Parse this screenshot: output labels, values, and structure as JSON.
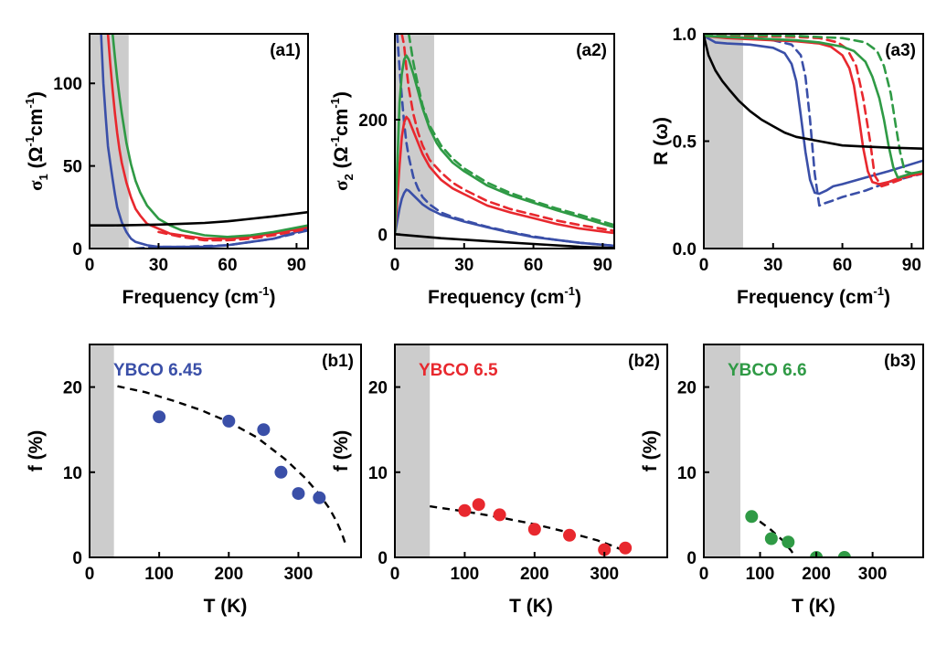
{
  "colors": {
    "blue": "#3a4fa8",
    "red": "#e8282e",
    "green": "#2f9a45",
    "black": "#000000",
    "shade": "#cccccc"
  },
  "chart_data": [
    {
      "id": "a1",
      "type": "line",
      "label": "(a1)",
      "xlabel": {
        "text": "Frequency (cm",
        "sup": "-1",
        "tail": ")"
      },
      "ylabel": {
        "sym": "σ",
        "sub": "1",
        "text": " (Ω",
        "sup1": "-1",
        "mid": "cm",
        "sup2": "-1",
        "tail": ")"
      },
      "xlim": [
        0,
        95
      ],
      "ylim": [
        0,
        130
      ],
      "xticks": [
        0,
        30,
        60,
        90
      ],
      "yticks": [
        0,
        50,
        100
      ],
      "shade": [
        0,
        17
      ],
      "series": [
        {
          "color": "blue",
          "dash": false,
          "x": [
            5,
            6,
            7,
            8,
            9,
            10,
            11,
            12,
            14,
            16,
            18,
            20,
            25,
            30,
            40,
            50,
            60,
            70,
            80,
            95
          ],
          "y": [
            130,
            100,
            80,
            62,
            52,
            42,
            33,
            25,
            16,
            10,
            6,
            4,
            2,
            1,
            1,
            1,
            2,
            4,
            6,
            12
          ]
        },
        {
          "color": "blue",
          "dash": true,
          "x": [
            20,
            25,
            30,
            40,
            50,
            60,
            70,
            80,
            95
          ],
          "y": [
            0,
            0.5,
            1,
            1,
            1.5,
            2,
            4,
            6,
            11
          ]
        },
        {
          "color": "red",
          "dash": false,
          "x": [
            8,
            9,
            10,
            11,
            12,
            13,
            14,
            16,
            18,
            20,
            22,
            25,
            30,
            35,
            40,
            50,
            60,
            70,
            80,
            95
          ],
          "y": [
            130,
            112,
            96,
            82,
            70,
            60,
            52,
            40,
            31,
            24,
            20,
            15,
            12,
            9,
            8,
            6,
            6,
            7,
            9,
            13
          ]
        },
        {
          "color": "red",
          "dash": true,
          "x": [
            30,
            40,
            50,
            60,
            70,
            80,
            95
          ],
          "y": [
            10,
            7,
            5,
            5,
            6,
            8,
            12
          ]
        },
        {
          "color": "green",
          "dash": false,
          "x": [
            10,
            11,
            12,
            13,
            14,
            16,
            18,
            20,
            22,
            25,
            30,
            35,
            40,
            50,
            60,
            70,
            80,
            95
          ],
          "y": [
            130,
            116,
            103,
            92,
            82,
            64,
            51,
            41,
            34,
            26,
            18,
            14,
            11,
            8,
            7,
            8,
            10,
            14
          ]
        },
        {
          "color": "black",
          "dash": false,
          "x": [
            0,
            10,
            20,
            30,
            40,
            50,
            60,
            70,
            80,
            95
          ],
          "y": [
            14,
            14,
            14.2,
            14.5,
            15,
            15.5,
            16.5,
            18,
            19.5,
            22
          ]
        }
      ]
    },
    {
      "id": "a2",
      "type": "line",
      "label": "(a2)",
      "xlabel": {
        "text": "Frequency (cm",
        "sup": "-1",
        "tail": ")"
      },
      "ylabel": {
        "sym": "σ",
        "sub": "2",
        "text": " (Ω",
        "sup1": "-1",
        "mid": "cm",
        "sup2": "-1",
        "tail": ")"
      },
      "xlim": [
        0,
        95
      ],
      "ylim": [
        -25,
        350
      ],
      "xticks": [
        0,
        30,
        60,
        90
      ],
      "yticks": [
        0,
        200
      ],
      "shade": [
        0,
        17
      ],
      "series": [
        {
          "color": "blue",
          "dash": false,
          "x": [
            0,
            2,
            3,
            4,
            5,
            6,
            8,
            10,
            12,
            15,
            18,
            20,
            25,
            30,
            40,
            50,
            60,
            70,
            80,
            95
          ],
          "y": [
            0,
            45,
            62,
            72,
            78,
            76,
            68,
            60,
            52,
            44,
            38,
            34,
            28,
            22,
            12,
            3,
            -5,
            -10,
            -15,
            -20
          ]
        },
        {
          "color": "blue",
          "dash": true,
          "x": [
            1,
            2,
            3,
            4,
            5,
            6,
            8,
            10,
            12,
            15,
            20,
            25,
            30,
            40,
            50,
            60,
            70,
            80,
            95
          ],
          "y": [
            350,
            290,
            240,
            195,
            160,
            135,
            100,
            80,
            65,
            52,
            38,
            30,
            24,
            13,
            4,
            -4,
            -10,
            -15,
            -20
          ]
        },
        {
          "color": "red",
          "dash": false,
          "x": [
            0,
            2,
            3,
            4,
            5,
            6,
            8,
            10,
            12,
            15,
            18,
            20,
            25,
            30,
            40,
            50,
            60,
            70,
            80,
            95
          ],
          "y": [
            0,
            120,
            170,
            195,
            205,
            200,
            180,
            160,
            140,
            118,
            104,
            95,
            80,
            70,
            50,
            38,
            28,
            18,
            10,
            2
          ]
        },
        {
          "color": "red",
          "dash": true,
          "x": [
            3,
            4,
            5,
            6,
            8,
            10,
            12,
            15,
            20,
            25,
            30,
            40,
            50,
            60,
            70,
            80,
            95
          ],
          "y": [
            350,
            330,
            290,
            255,
            210,
            178,
            155,
            130,
            108,
            90,
            78,
            58,
            44,
            34,
            24,
            16,
            6
          ]
        },
        {
          "color": "green",
          "dash": false,
          "x": [
            0,
            2,
            3,
            4,
            5,
            6,
            8,
            10,
            12,
            15,
            18,
            20,
            25,
            30,
            40,
            50,
            60,
            70,
            80,
            95
          ],
          "y": [
            0,
            230,
            280,
            305,
            312,
            305,
            280,
            250,
            220,
            185,
            160,
            148,
            125,
            110,
            85,
            68,
            55,
            42,
            30,
            12
          ]
        },
        {
          "color": "green",
          "dash": true,
          "x": [
            6,
            8,
            10,
            12,
            15,
            20,
            25,
            30,
            40,
            50,
            60,
            70,
            80,
            95
          ],
          "y": [
            350,
            300,
            260,
            225,
            190,
            155,
            132,
            115,
            90,
            72,
            58,
            45,
            34,
            16
          ]
        },
        {
          "color": "black",
          "dash": false,
          "x": [
            0,
            20,
            40,
            60,
            80,
            95
          ],
          "y": [
            0,
            -7,
            -12,
            -17,
            -22,
            -24
          ]
        }
      ]
    },
    {
      "id": "a3",
      "type": "line",
      "label": "(a3)",
      "xlabel": {
        "text": "Frequency (cm",
        "sup": "-1",
        "tail": ")"
      },
      "ylabel": {
        "text": "R (ω)"
      },
      "xlim": [
        0,
        95
      ],
      "ylim": [
        0,
        1.0
      ],
      "xticks": [
        0,
        30,
        60,
        90
      ],
      "yticks": [
        0.0,
        0.5,
        1.0
      ],
      "ytick_labels": [
        "0.0",
        "0.5",
        "1.0"
      ],
      "shade": [
        0,
        17
      ],
      "series": [
        {
          "color": "blue",
          "dash": false,
          "x": [
            0,
            5,
            10,
            20,
            30,
            35,
            38,
            40,
            42,
            44,
            46,
            48,
            50,
            53,
            56,
            60,
            70,
            80,
            95
          ],
          "y": [
            0.99,
            0.96,
            0.955,
            0.95,
            0.935,
            0.91,
            0.86,
            0.78,
            0.62,
            0.45,
            0.32,
            0.26,
            0.255,
            0.27,
            0.29,
            0.3,
            0.33,
            0.36,
            0.41
          ]
        },
        {
          "color": "blue",
          "dash": true,
          "x": [
            0,
            10,
            20,
            30,
            38,
            42,
            44,
            46,
            48,
            50,
            52,
            55,
            60,
            70,
            80,
            95
          ],
          "y": [
            1.0,
            0.99,
            0.98,
            0.97,
            0.95,
            0.9,
            0.8,
            0.6,
            0.35,
            0.2,
            0.21,
            0.22,
            0.24,
            0.27,
            0.31,
            0.35
          ]
        },
        {
          "color": "red",
          "dash": false,
          "x": [
            0,
            10,
            20,
            30,
            40,
            50,
            55,
            60,
            63,
            65,
            67,
            69,
            71,
            73,
            76,
            80,
            85,
            90,
            95
          ],
          "y": [
            0.99,
            0.98,
            0.975,
            0.97,
            0.965,
            0.955,
            0.94,
            0.9,
            0.84,
            0.76,
            0.62,
            0.47,
            0.36,
            0.31,
            0.3,
            0.31,
            0.33,
            0.34,
            0.35
          ]
        },
        {
          "color": "red",
          "dash": true,
          "x": [
            0,
            20,
            40,
            50,
            58,
            62,
            66,
            69,
            72,
            74,
            77,
            80,
            85,
            90,
            95
          ],
          "y": [
            1.0,
            0.99,
            0.985,
            0.98,
            0.96,
            0.93,
            0.85,
            0.7,
            0.5,
            0.34,
            0.29,
            0.3,
            0.32,
            0.34,
            0.35
          ]
        },
        {
          "color": "green",
          "dash": false,
          "x": [
            0,
            10,
            20,
            30,
            40,
            50,
            60,
            65,
            70,
            73,
            76,
            78,
            80,
            82,
            84,
            87,
            90,
            95
          ],
          "y": [
            0.99,
            0.985,
            0.98,
            0.975,
            0.97,
            0.96,
            0.94,
            0.92,
            0.87,
            0.8,
            0.7,
            0.6,
            0.48,
            0.38,
            0.33,
            0.34,
            0.35,
            0.36
          ]
        },
        {
          "color": "green",
          "dash": true,
          "x": [
            0,
            20,
            40,
            60,
            70,
            75,
            78,
            81,
            83,
            85,
            87,
            90,
            95
          ],
          "y": [
            1.0,
            0.995,
            0.99,
            0.98,
            0.96,
            0.92,
            0.85,
            0.72,
            0.58,
            0.45,
            0.36,
            0.35,
            0.36
          ]
        },
        {
          "color": "black",
          "dash": false,
          "x": [
            0,
            2,
            5,
            8,
            11,
            15,
            20,
            25,
            30,
            35,
            40,
            50,
            60,
            70,
            80,
            95
          ],
          "y": [
            0.99,
            0.9,
            0.83,
            0.78,
            0.74,
            0.69,
            0.64,
            0.6,
            0.57,
            0.54,
            0.52,
            0.5,
            0.48,
            0.475,
            0.47,
            0.465
          ]
        }
      ]
    },
    {
      "id": "b1",
      "type": "scatter",
      "label": "(b1)",
      "legend": {
        "text": "YBCO 6.45",
        "color": "blue"
      },
      "xlabel": {
        "text": "T (K)"
      },
      "ylabel": {
        "text": "f (%)"
      },
      "xlim": [
        0,
        390
      ],
      "ylim": [
        0,
        25
      ],
      "xticks": [
        0,
        100,
        200,
        300
      ],
      "yticks": [
        0,
        10,
        20
      ],
      "shade": [
        0,
        35
      ],
      "points": {
        "color": "blue",
        "x": [
          100,
          200,
          250,
          275,
          300,
          330
        ],
        "y": [
          16.5,
          16.0,
          15.0,
          10.0,
          7.5,
          7.0
        ]
      },
      "fit": {
        "x": [
          40,
          80,
          120,
          160,
          200,
          240,
          280,
          310,
          330,
          345,
          355,
          362,
          368
        ],
        "y": [
          20.1,
          19.4,
          18.4,
          17.3,
          15.9,
          14.1,
          11.6,
          9.3,
          7.4,
          5.7,
          4.2,
          2.9,
          1.5
        ]
      }
    },
    {
      "id": "b2",
      "type": "scatter",
      "label": "(b2)",
      "legend": {
        "text": "YBCO 6.5",
        "color": "red"
      },
      "xlabel": {
        "text": "T (K)"
      },
      "ylabel": {
        "text": "f (%)"
      },
      "xlim": [
        0,
        390
      ],
      "ylim": [
        0,
        25
      ],
      "xticks": [
        0,
        100,
        200,
        300
      ],
      "yticks": [
        0,
        10,
        20
      ],
      "shade": [
        0,
        50
      ],
      "points": {
        "color": "red",
        "x": [
          100,
          120,
          150,
          200,
          250,
          300,
          330
        ],
        "y": [
          5.5,
          6.2,
          5.0,
          3.3,
          2.6,
          0.9,
          1.1
        ]
      },
      "fit": {
        "x": [
          50,
          100,
          150,
          200,
          250,
          290,
          310,
          325
        ],
        "y": [
          6.0,
          5.4,
          4.7,
          3.9,
          2.9,
          2.0,
          1.4,
          0.9
        ]
      }
    },
    {
      "id": "b3",
      "type": "scatter",
      "label": "(b3)",
      "legend": {
        "text": "YBCO 6.6",
        "color": "green"
      },
      "xlabel": {
        "text": "T (K)"
      },
      "ylabel": {
        "text": "f (%)"
      },
      "xlim": [
        0,
        390
      ],
      "ylim": [
        0,
        25
      ],
      "xticks": [
        0,
        100,
        200,
        300
      ],
      "yticks": [
        0,
        10,
        20
      ],
      "shade": [
        0,
        65
      ],
      "points": {
        "color": "green",
        "x": [
          85,
          120,
          150,
          200,
          250
        ],
        "y": [
          4.8,
          2.2,
          1.8,
          0.0,
          0.0
        ]
      },
      "fit": {
        "x": [
          80,
          100,
          120,
          140,
          155,
          162
        ],
        "y": [
          5.0,
          4.2,
          3.2,
          2.0,
          0.8,
          0.1
        ]
      }
    }
  ]
}
